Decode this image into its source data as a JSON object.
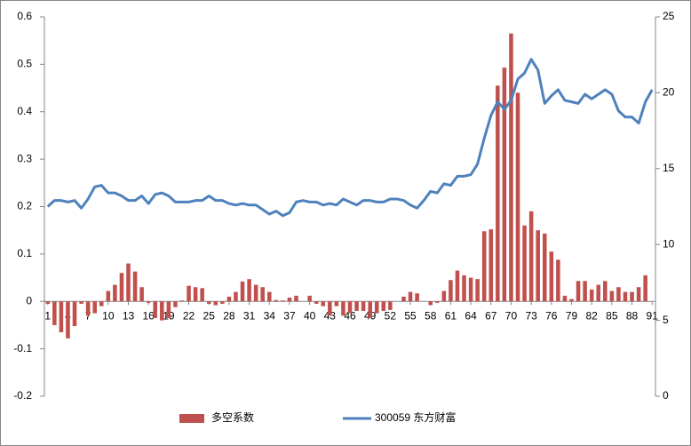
{
  "chart_data": {
    "type": "combo",
    "categories": [
      "1",
      null,
      null,
      "4",
      null,
      null,
      "7",
      null,
      null,
      "10",
      null,
      null,
      "13",
      null,
      null,
      "16",
      null,
      null,
      "19",
      null,
      null,
      "22",
      null,
      null,
      "25",
      null,
      null,
      "28",
      null,
      null,
      "31",
      null,
      null,
      "34",
      null,
      null,
      "37",
      null,
      null,
      "40",
      null,
      null,
      "43",
      null,
      null,
      "46",
      null,
      null,
      "49",
      null,
      null,
      "52",
      null,
      null,
      "55",
      null,
      null,
      "58",
      null,
      null,
      "61",
      null,
      null,
      "64",
      null,
      null,
      "67",
      null,
      null,
      "70",
      null,
      null,
      "73",
      null,
      null,
      "76",
      null,
      null,
      "79",
      null,
      null,
      "82",
      null,
      null,
      "85",
      null,
      null,
      "88",
      null,
      null,
      "91"
    ],
    "series": [
      {
        "name": "多空系数",
        "type": "bar",
        "color": "#c0504d",
        "axis": "y",
        "values": [
          -0.005,
          -0.05,
          -0.065,
          -0.078,
          -0.052,
          -0.005,
          -0.03,
          -0.025,
          -0.01,
          0.022,
          0.035,
          0.06,
          0.08,
          0.063,
          0.03,
          -0.003,
          -0.035,
          -0.04,
          -0.035,
          -0.012,
          0.002,
          0.033,
          0.03,
          0.028,
          -0.005,
          -0.008,
          -0.005,
          0.01,
          0.02,
          0.042,
          0.047,
          0.035,
          0.03,
          0.02,
          0.003,
          0.002,
          0.008,
          0.012,
          0.0,
          0.012,
          -0.005,
          -0.01,
          -0.03,
          -0.01,
          -0.03,
          -0.025,
          -0.02,
          -0.02,
          -0.035,
          -0.025,
          -0.02,
          -0.018,
          0.0,
          0.01,
          0.02,
          0.017,
          0.0,
          -0.008,
          -0.003,
          0.022,
          0.045,
          0.065,
          0.055,
          0.05,
          0.047,
          0.148,
          0.152,
          0.455,
          0.493,
          0.565,
          0.44,
          0.16,
          0.19,
          0.15,
          0.143,
          0.105,
          0.088,
          0.012,
          0.005,
          0.043,
          0.043,
          0.025,
          0.035,
          0.043,
          0.022,
          0.03,
          0.02,
          0.02,
          0.03,
          0.055,
          0.0
        ]
      },
      {
        "name": "300059 东方财富",
        "type": "line",
        "color": "#4f81bd",
        "axis": "y2",
        "values": [
          12.5,
          12.9,
          12.9,
          12.8,
          12.9,
          12.4,
          13.0,
          13.8,
          13.9,
          13.4,
          13.4,
          13.2,
          12.9,
          12.9,
          13.2,
          12.7,
          13.3,
          13.4,
          13.2,
          12.8,
          12.8,
          12.8,
          12.9,
          12.9,
          13.2,
          12.9,
          12.9,
          12.7,
          12.6,
          12.7,
          12.6,
          12.6,
          12.3,
          12.0,
          12.2,
          11.9,
          12.1,
          12.8,
          12.9,
          12.8,
          12.8,
          12.6,
          12.7,
          12.6,
          13.0,
          12.8,
          12.6,
          12.9,
          12.9,
          12.8,
          12.8,
          13.0,
          13.0,
          12.9,
          12.6,
          12.4,
          12.9,
          13.5,
          13.4,
          14.0,
          13.9,
          14.5,
          14.5,
          14.6,
          15.3,
          17.0,
          18.5,
          19.4,
          18.9,
          19.5,
          20.9,
          21.3,
          22.2,
          21.5,
          19.3,
          19.8,
          20.2,
          19.5,
          19.4,
          19.3,
          19.9,
          19.6,
          19.9,
          20.2,
          19.9,
          18.8,
          18.4,
          18.4,
          18.0,
          19.4,
          20.2
        ]
      }
    ],
    "ylim": [
      -0.2,
      0.6
    ],
    "yticks": [
      -0.2,
      -0.1,
      0,
      0.1,
      0.2,
      0.3,
      0.4,
      0.5,
      0.6
    ],
    "y2lim": [
      0,
      25
    ],
    "y2ticks": [
      0,
      5,
      10,
      15,
      20,
      25
    ],
    "legend": "bottom"
  }
}
